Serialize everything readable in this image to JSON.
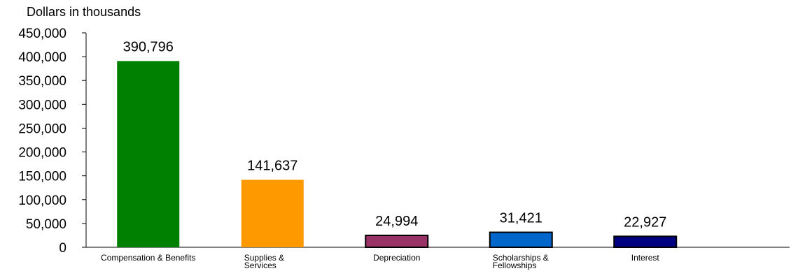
{
  "chart_data": {
    "type": "bar",
    "title": "",
    "xlabel": "",
    "ylabel": "Dollars in thousands",
    "ylim": [
      0,
      450000
    ],
    "yticks": [
      0,
      50000,
      100000,
      150000,
      200000,
      250000,
      300000,
      350000,
      400000,
      450000
    ],
    "ytick_labels": [
      "0",
      "50,000",
      "100,000",
      "150,000",
      "200,000",
      "250,000",
      "300,000",
      "350,000",
      "400,000",
      "450,000"
    ],
    "grid": false,
    "legend": "none",
    "categories": [
      [
        "Compensation & Benefits"
      ],
      [
        "Supplies &",
        "Services"
      ],
      [
        "Depreciation"
      ],
      [
        "Scholarships &",
        "Fellowships"
      ],
      [
        "Interest"
      ]
    ],
    "values": [
      390796,
      141637,
      24994,
      31421,
      22927
    ],
    "data_labels": [
      "390,796",
      "141,637",
      "24,994",
      "31,421",
      "22,927"
    ],
    "colors": [
      "#008000",
      "#ff9900",
      "#993366",
      "#0066cc",
      "#000080"
    ],
    "outlined": [
      false,
      false,
      true,
      true,
      true
    ]
  }
}
